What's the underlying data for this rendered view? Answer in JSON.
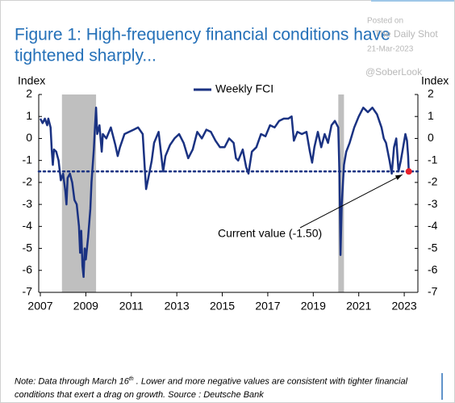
{
  "chart_data": {
    "type": "line",
    "title": [
      "Figure 1: High-frequency financial conditions have",
      "tightened sharply..."
    ],
    "watermark": [
      "Posted on",
      "The Daily Shot",
      "21-Mar-2023",
      "@SoberLook"
    ],
    "y_label": "Index",
    "y2_label": "Index",
    "xlim": [
      2007,
      2023.6
    ],
    "xticks": [
      2007,
      2009,
      2011,
      2013,
      2015,
      2017,
      2019,
      2021,
      2023
    ],
    "ylim": [
      -7,
      2
    ],
    "yticks": [
      -7,
      -6,
      -5,
      -4,
      -3,
      -2,
      -1,
      0,
      1,
      2
    ],
    "y2lim": [
      -7,
      2
    ],
    "y2ticks": [
      -7,
      -6,
      -5,
      -4,
      -3,
      -2,
      -1,
      0,
      1,
      2
    ],
    "legend": "top",
    "shaded_regions": [
      [
        2007.95,
        2009.45
      ],
      [
        2020.1,
        2020.35
      ]
    ],
    "shade_color": "#bfbfbf",
    "reference_line": -1.5,
    "annotation": "Current value (-1.50)",
    "current_color": "#e8202a",
    "x": [
      2007.0,
      2007.1,
      2007.2,
      2007.3,
      2007.35,
      2007.45,
      2007.5,
      2007.55,
      2007.6,
      2007.7,
      2007.8,
      2007.9,
      2008.0,
      2008.1,
      2008.15,
      2008.2,
      2008.3,
      2008.4,
      2008.5,
      2008.6,
      2008.7,
      2008.75,
      2008.8,
      2008.85,
      2008.9,
      2008.95,
      2009.0,
      2009.1,
      2009.2,
      2009.25,
      2009.35,
      2009.4,
      2009.45,
      2009.5,
      2009.6,
      2009.7,
      2009.75,
      2009.9,
      2010.1,
      2010.3,
      2010.4,
      2010.5,
      2010.7,
      2010.9,
      2011.1,
      2011.3,
      2011.5,
      2011.6,
      2011.65,
      2011.75,
      2011.9,
      2012.0,
      2012.2,
      2012.4,
      2012.5,
      2012.7,
      2012.9,
      2013.1,
      2013.3,
      2013.5,
      2013.7,
      2013.9,
      2014.1,
      2014.3,
      2014.5,
      2014.7,
      2014.9,
      2015.1,
      2015.3,
      2015.5,
      2015.6,
      2015.7,
      2015.9,
      2016.05,
      2016.15,
      2016.3,
      2016.5,
      2016.7,
      2016.9,
      2017.1,
      2017.3,
      2017.5,
      2017.7,
      2017.9,
      2018.05,
      2018.15,
      2018.3,
      2018.5,
      2018.7,
      2018.85,
      2018.95,
      2019.05,
      2019.2,
      2019.35,
      2019.5,
      2019.65,
      2019.8,
      2019.95,
      2020.1,
      2020.15,
      2020.2,
      2020.25,
      2020.35,
      2020.45,
      2020.6,
      2020.8,
      2021.0,
      2021.2,
      2021.4,
      2021.6,
      2021.8,
      2022.0,
      2022.1,
      2022.2,
      2022.35,
      2022.45,
      2022.55,
      2022.65,
      2022.75,
      2022.85,
      2022.95,
      2023.05,
      2023.12,
      2023.17,
      2023.2
    ],
    "series": [
      {
        "name": "Weekly FCI",
        "color": "#1a3282",
        "values": [
          0.9,
          0.7,
          0.9,
          0.6,
          0.9,
          0.5,
          -0.5,
          -1.2,
          -0.5,
          -0.6,
          -1.0,
          -1.9,
          -1.6,
          -2.4,
          -3.0,
          -1.8,
          -1.6,
          -2.0,
          -2.8,
          -3.0,
          -4.0,
          -5.2,
          -4.2,
          -5.8,
          -6.3,
          -5.0,
          -5.5,
          -4.5,
          -3.2,
          -2.0,
          -0.5,
          0.5,
          1.4,
          0.2,
          0.6,
          -0.6,
          0.2,
          0.0,
          0.5,
          -0.3,
          -0.8,
          -0.4,
          0.2,
          0.3,
          0.4,
          0.5,
          0.2,
          -1.5,
          -2.3,
          -1.8,
          -1.0,
          -0.2,
          0.3,
          -1.5,
          -0.8,
          -0.3,
          0.0,
          0.2,
          -0.2,
          -0.9,
          -0.5,
          0.3,
          0.0,
          0.4,
          0.3,
          -0.1,
          -0.4,
          -0.4,
          0.0,
          -0.2,
          -0.9,
          -1.0,
          -0.5,
          -1.3,
          -1.6,
          -0.6,
          -0.4,
          0.2,
          0.1,
          0.6,
          0.5,
          0.8,
          0.9,
          0.9,
          1.0,
          -0.1,
          0.3,
          0.2,
          0.3,
          -0.6,
          -1.1,
          -0.4,
          0.3,
          -0.4,
          0.2,
          -0.2,
          0.6,
          0.8,
          0.5,
          -1.5,
          -5.3,
          -3.0,
          -1.2,
          -0.6,
          -0.2,
          0.5,
          1.0,
          1.4,
          1.2,
          1.4,
          1.1,
          0.5,
          0.0,
          -0.2,
          -1.0,
          -1.6,
          -0.4,
          0.0,
          -1.5,
          -1.0,
          -0.4,
          0.2,
          -0.1,
          -0.8,
          -1.5
        ]
      }
    ],
    "note": [
      "Note: Data through March 16",
      "th",
      " . Lower and more negative values are consistent with tighter financial",
      "conditions that exert a drag on growth. Source : Deutsche Bank"
    ]
  }
}
